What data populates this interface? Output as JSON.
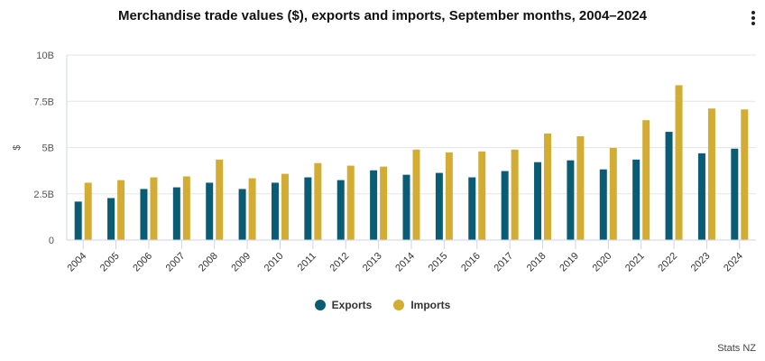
{
  "chart_data": {
    "type": "bar",
    "title": "Merchandise trade values ($), exports and imports, September months, 2004–2024",
    "ylabel": "$",
    "xlabel": "",
    "ylim": [
      0,
      10
    ],
    "yticks": [
      0,
      2.5,
      5,
      7.5,
      10
    ],
    "ytick_labels": [
      "0",
      "2.5B",
      "5B",
      "7.5B",
      "10B"
    ],
    "grid": true,
    "legend_placement": "bottom",
    "categories": [
      "2004",
      "2005",
      "2006",
      "2007",
      "2008",
      "2009",
      "2010",
      "2011",
      "2012",
      "2013",
      "2014",
      "2015",
      "2016",
      "2017",
      "2018",
      "2019",
      "2020",
      "2021",
      "2022",
      "2023",
      "2024"
    ],
    "series": [
      {
        "name": "Exports",
        "color": "#0a5c75",
        "values": [
          2.08,
          2.27,
          2.76,
          2.85,
          3.1,
          2.76,
          3.1,
          3.39,
          3.24,
          3.77,
          3.53,
          3.63,
          3.39,
          3.73,
          4.21,
          4.31,
          3.82,
          4.35,
          5.85,
          4.69,
          4.94
        ]
      },
      {
        "name": "Imports",
        "color": "#d3ac34",
        "values": [
          3.1,
          3.24,
          3.39,
          3.44,
          4.35,
          3.34,
          3.58,
          4.16,
          4.02,
          3.97,
          4.89,
          4.74,
          4.79,
          4.89,
          5.76,
          5.61,
          4.98,
          6.48,
          8.37,
          7.11,
          7.06
        ]
      }
    ]
  },
  "credit": "Stats NZ",
  "menu_icon": "kebab-menu-icon"
}
